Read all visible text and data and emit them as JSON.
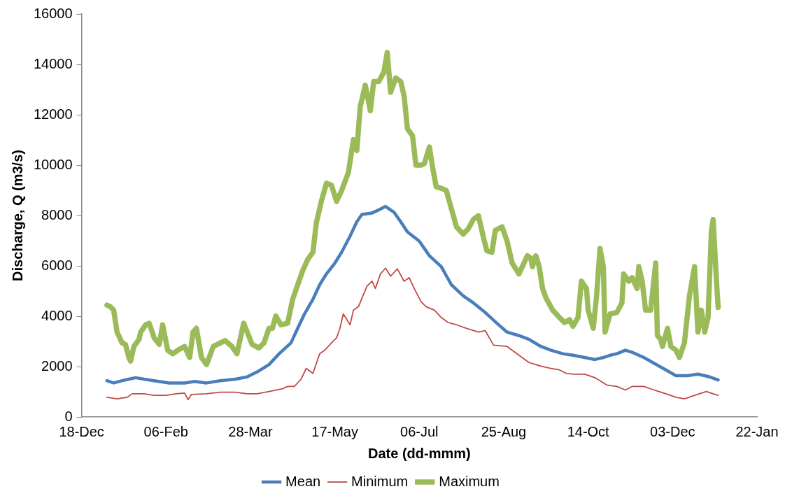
{
  "chart_data": {
    "type": "line",
    "xlabel": "Date (dd-mmm)",
    "ylabel": "Discharge, Q (m3/s)",
    "legend": "bottom",
    "marker": "none",
    "line_style": "solid",
    "grid": false,
    "xlim": [
      "2000-12-18",
      "2002-01-22"
    ],
    "xticks": [
      {
        "value": "2000-12-18",
        "label": "18-Dec"
      },
      {
        "value": "2001-02-06",
        "label": "06-Feb"
      },
      {
        "value": "2001-03-28",
        "label": "28-Mar"
      },
      {
        "value": "2001-05-17",
        "label": "17-May"
      },
      {
        "value": "2001-07-06",
        "label": "06-Jul"
      },
      {
        "value": "2001-08-25",
        "label": "25-Aug"
      },
      {
        "value": "2001-10-14",
        "label": "14-Oct"
      },
      {
        "value": "2001-12-03",
        "label": "03-Dec"
      },
      {
        "value": "2002-01-22",
        "label": "22-Jan"
      }
    ],
    "ylim": [
      0,
      16000
    ],
    "yticks": [
      0,
      2000,
      4000,
      6000,
      8000,
      10000,
      12000,
      14000,
      16000
    ],
    "series": [
      {
        "name": "Mean",
        "color": "#4a7ebb",
        "x": [
          "2001-01-02",
          "2001-01-06",
          "2001-01-11",
          "2001-01-15",
          "2001-01-19",
          "2001-01-24",
          "2001-01-30",
          "2001-02-08",
          "2001-02-17",
          "2001-02-23",
          "2001-03-02",
          "2001-03-10",
          "2001-03-19",
          "2001-03-26",
          "2001-04-01",
          "2001-04-08",
          "2001-04-14",
          "2001-04-21",
          "2001-04-25",
          "2001-04-29",
          "2001-05-04",
          "2001-05-08",
          "2001-05-12",
          "2001-05-17",
          "2001-05-21",
          "2001-05-26",
          "2001-05-30",
          "2001-06-02",
          "2001-06-08",
          "2001-06-12",
          "2001-06-16",
          "2001-06-21",
          "2001-06-25",
          "2001-06-29",
          "2001-07-06",
          "2001-07-12",
          "2001-07-19",
          "2001-07-25",
          "2001-08-01",
          "2001-08-07",
          "2001-08-14",
          "2001-08-21",
          "2001-08-27",
          "2001-09-03",
          "2001-09-09",
          "2001-09-16",
          "2001-09-22",
          "2001-09-29",
          "2001-10-05",
          "2001-10-12",
          "2001-10-18",
          "2001-10-23",
          "2001-10-27",
          "2001-10-31",
          "2001-11-05",
          "2001-11-09",
          "2001-11-16",
          "2001-11-22",
          "2001-11-29",
          "2001-12-05",
          "2001-12-12",
          "2001-12-18",
          "2001-12-25",
          "2001-12-30"
        ],
        "values": [
          1440,
          1350,
          1440,
          1500,
          1560,
          1500,
          1440,
          1350,
          1350,
          1410,
          1350,
          1440,
          1500,
          1590,
          1790,
          2080,
          2510,
          2940,
          3520,
          4090,
          4670,
          5250,
          5680,
          6110,
          6540,
          7180,
          7750,
          8040,
          8100,
          8220,
          8360,
          8130,
          7750,
          7350,
          6980,
          6400,
          5970,
          5250,
          4810,
          4530,
          4150,
          3720,
          3370,
          3230,
          3080,
          2800,
          2650,
          2510,
          2450,
          2360,
          2280,
          2360,
          2450,
          2510,
          2650,
          2570,
          2360,
          2130,
          1870,
          1640,
          1640,
          1700,
          1590,
          1470
        ]
      },
      {
        "name": "Minimum",
        "color": "#be4b48",
        "x": [
          "2001-01-02",
          "2001-01-08",
          "2001-01-14",
          "2001-01-17",
          "2001-01-24",
          "2001-01-30",
          "2001-02-06",
          "2001-02-12",
          "2001-02-17",
          "2001-02-19",
          "2001-02-21",
          "2001-03-02",
          "2001-03-10",
          "2001-03-19",
          "2001-03-26",
          "2001-04-01",
          "2001-04-08",
          "2001-04-16",
          "2001-04-19",
          "2001-04-23",
          "2001-04-27",
          "2001-04-30",
          "2001-05-04",
          "2001-05-08",
          "2001-05-11",
          "2001-05-15",
          "2001-05-18",
          "2001-05-20",
          "2001-05-22",
          "2001-05-26",
          "2001-05-28",
          "2001-05-31",
          "2001-06-03",
          "2001-06-05",
          "2001-06-08",
          "2001-06-10",
          "2001-06-13",
          "2001-06-16",
          "2001-06-19",
          "2001-06-23",
          "2001-06-27",
          "2001-06-30",
          "2001-07-03",
          "2001-07-07",
          "2001-07-10",
          "2001-07-15",
          "2001-07-19",
          "2001-07-23",
          "2001-07-28",
          "2001-08-03",
          "2001-08-10",
          "2001-08-14",
          "2001-08-19",
          "2001-08-27",
          "2001-09-03",
          "2001-09-09",
          "2001-09-16",
          "2001-09-22",
          "2001-09-27",
          "2001-10-01",
          "2001-10-05",
          "2001-10-12",
          "2001-10-18",
          "2001-10-25",
          "2001-10-31",
          "2001-11-05",
          "2001-11-09",
          "2001-11-16",
          "2001-11-22",
          "2001-11-29",
          "2001-12-05",
          "2001-12-10",
          "2001-12-16",
          "2001-12-23",
          "2001-12-27",
          "2001-12-30"
        ],
        "values": [
          780,
          720,
          780,
          920,
          920,
          860,
          860,
          920,
          950,
          690,
          890,
          920,
          980,
          980,
          920,
          920,
          1010,
          1120,
          1210,
          1210,
          1500,
          1930,
          1730,
          2510,
          2650,
          2940,
          3140,
          3520,
          4090,
          3660,
          4240,
          4380,
          4870,
          5190,
          5390,
          5100,
          5680,
          5910,
          5590,
          5880,
          5390,
          5530,
          5100,
          4580,
          4380,
          4240,
          3950,
          3750,
          3660,
          3520,
          3370,
          3430,
          2850,
          2800,
          2450,
          2160,
          2020,
          1930,
          1870,
          1730,
          1700,
          1700,
          1560,
          1270,
          1210,
          1070,
          1210,
          1210,
          1070,
          920,
          780,
          720,
          860,
          1010,
          920,
          860
        ]
      },
      {
        "name": "Maximum",
        "color": "#9bbb59",
        "x": [
          "2001-01-02",
          "2001-01-04",
          "2001-01-06",
          "2001-01-08",
          "2001-01-11",
          "2001-01-13",
          "2001-01-15",
          "2001-01-16",
          "2001-01-18",
          "2001-01-21",
          "2001-01-22",
          "2001-01-25",
          "2001-01-27",
          "2001-01-30",
          "2001-02-02",
          "2001-02-04",
          "2001-02-07",
          "2001-02-10",
          "2001-02-13",
          "2001-02-17",
          "2001-02-20",
          "2001-02-22",
          "2001-02-24",
          "2001-02-27",
          "2001-03-02",
          "2001-03-06",
          "2001-03-13",
          "2001-03-17",
          "2001-03-20",
          "2001-03-24",
          "2001-03-29",
          "2001-04-02",
          "2001-04-05",
          "2001-04-08",
          "2001-04-10",
          "2001-04-12",
          "2001-04-15",
          "2001-04-19",
          "2001-04-22",
          "2001-04-25",
          "2001-04-28",
          "2001-05-01",
          "2001-05-04",
          "2001-05-06",
          "2001-05-09",
          "2001-05-12",
          "2001-05-15",
          "2001-05-18",
          "2001-05-21",
          "2001-05-25",
          "2001-05-28",
          "2001-05-30",
          "2001-06-01",
          "2001-06-04",
          "2001-06-07",
          "2001-06-09",
          "2001-06-12",
          "2001-06-15",
          "2001-06-17",
          "2001-06-19",
          "2001-06-22",
          "2001-06-25",
          "2001-06-27",
          "2001-06-29",
          "2001-07-02",
          "2001-07-04",
          "2001-07-07",
          "2001-07-09",
          "2001-07-12",
          "2001-07-14",
          "2001-07-16",
          "2001-07-19",
          "2001-07-22",
          "2001-07-25",
          "2001-07-28",
          "2001-08-01",
          "2001-08-04",
          "2001-08-07",
          "2001-08-10",
          "2001-08-13",
          "2001-08-15",
          "2001-08-18",
          "2001-08-20",
          "2001-08-24",
          "2001-08-27",
          "2001-08-30",
          "2001-09-03",
          "2001-09-05",
          "2001-09-08",
          "2001-09-10",
          "2001-09-11",
          "2001-09-13",
          "2001-09-15",
          "2001-09-17",
          "2001-09-19",
          "2001-09-23",
          "2001-09-27",
          "2001-09-30",
          "2001-10-03",
          "2001-10-05",
          "2001-10-08",
          "2001-10-10",
          "2001-10-13",
          "2001-10-14",
          "2001-10-17",
          "2001-10-19",
          "2001-10-21",
          "2001-10-23",
          "2001-10-24",
          "2001-10-27",
          "2001-10-31",
          "2001-11-03",
          "2001-11-04",
          "2001-11-07",
          "2001-11-09",
          "2001-11-12",
          "2001-11-13",
          "2001-11-15",
          "2001-11-17",
          "2001-11-20",
          "2001-11-23",
          "2001-11-24",
          "2001-11-26",
          "2001-11-27",
          "2001-11-30",
          "2001-12-02",
          "2001-12-05",
          "2001-12-07",
          "2001-12-10",
          "2001-12-13",
          "2001-12-16",
          "2001-12-18",
          "2001-12-20",
          "2001-12-22",
          "2001-12-24",
          "2001-12-26",
          "2001-12-27",
          "2001-12-29",
          "2001-12-30"
        ],
        "values": [
          4440,
          4380,
          4240,
          3370,
          2940,
          2880,
          2360,
          2220,
          2800,
          3080,
          3370,
          3660,
          3720,
          3140,
          2880,
          3660,
          2650,
          2510,
          2650,
          2800,
          2360,
          3370,
          3520,
          2360,
          2080,
          2800,
          3030,
          2800,
          2510,
          3720,
          2880,
          2740,
          2940,
          3520,
          3520,
          4010,
          3660,
          3720,
          4670,
          5250,
          5820,
          6260,
          6540,
          7700,
          8560,
          9280,
          9200,
          8560,
          8990,
          9710,
          11010,
          10580,
          12310,
          13170,
          12160,
          13320,
          13320,
          13690,
          14470,
          12890,
          13460,
          13320,
          12740,
          11440,
          11160,
          10000,
          10000,
          10060,
          10720,
          9860,
          9140,
          9080,
          8990,
          8270,
          7550,
          7260,
          7470,
          7840,
          7990,
          7120,
          6600,
          6540,
          7410,
          7550,
          6980,
          6110,
          5680,
          5970,
          6400,
          6310,
          5970,
          6400,
          5970,
          5100,
          4730,
          4240,
          3950,
          3750,
          3860,
          3600,
          3950,
          5390,
          5100,
          4240,
          3520,
          4810,
          6690,
          5970,
          3370,
          4090,
          4150,
          4530,
          5680,
          5390,
          5530,
          5100,
          5970,
          5390,
          4240,
          4240,
          6110,
          3230,
          3080,
          2800,
          3520,
          2800,
          2650,
          2360,
          2940,
          4810,
          5970,
          3370,
          4240,
          3370,
          3950,
          7410,
          7840,
          5390,
          4350
        ]
      }
    ]
  }
}
